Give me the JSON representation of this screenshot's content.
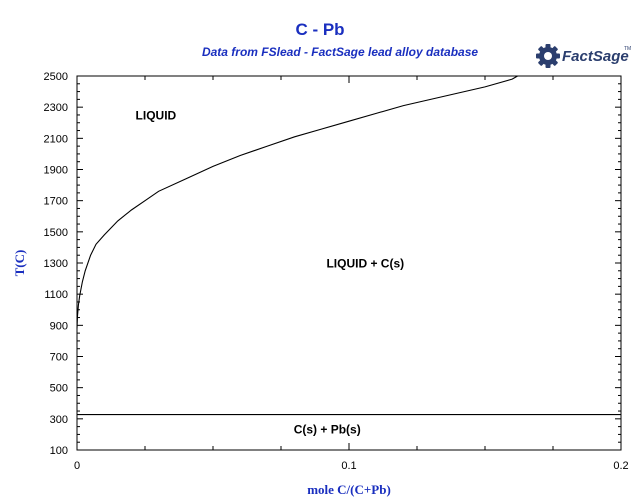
{
  "header": {
    "title": "C - Pb",
    "subtitle": "Data from FSlead - FactSage lead alloy database",
    "logo_text": "FactSage",
    "logo_tm": "TM"
  },
  "colors": {
    "title": "#1a2fbf",
    "axis_label": "#1a2fbf",
    "line": "#000000",
    "logo": "#2b3e6e"
  },
  "chart_data": {
    "type": "line",
    "xlabel": "mole C/(C+Pb)",
    "ylabel": "T(C)",
    "xlim": [
      0,
      0.2
    ],
    "ylim": [
      100,
      2500
    ],
    "x_ticks": [
      {
        "value": 0,
        "label": "0"
      },
      {
        "value": 0.1,
        "label": "0.1"
      },
      {
        "value": 0.2,
        "label": "0.2"
      }
    ],
    "y_ticks": [
      {
        "value": 100,
        "label": "100"
      },
      {
        "value": 300,
        "label": "300"
      },
      {
        "value": 500,
        "label": "500"
      },
      {
        "value": 700,
        "label": "700"
      },
      {
        "value": 900,
        "label": "900"
      },
      {
        "value": 1100,
        "label": "1100"
      },
      {
        "value": 1300,
        "label": "1300"
      },
      {
        "value": 1500,
        "label": "1500"
      },
      {
        "value": 1700,
        "label": "1700"
      },
      {
        "value": 1900,
        "label": "1900"
      },
      {
        "value": 2100,
        "label": "2100"
      },
      {
        "value": 2300,
        "label": "2300"
      },
      {
        "value": 2500,
        "label": "2500"
      }
    ],
    "grid": false,
    "series": [
      {
        "x": [
          0.0,
          0.0002,
          0.0005,
          0.001,
          0.002,
          0.003,
          0.005,
          0.007,
          0.01,
          0.015,
          0.02,
          0.025,
          0.03,
          0.04,
          0.05,
          0.06,
          0.07,
          0.08,
          0.09,
          0.1,
          0.11,
          0.12,
          0.13,
          0.14,
          0.15,
          0.16,
          0.162
        ],
        "y": [
          880,
          960,
          1030,
          1090,
          1180,
          1250,
          1350,
          1420,
          1480,
          1570,
          1640,
          1700,
          1760,
          1840,
          1920,
          1990,
          2050,
          2110,
          2160,
          2210,
          2260,
          2310,
          2350,
          2390,
          2430,
          2480,
          2500
        ]
      },
      {
        "x": [
          0,
          0.2
        ],
        "y": [
          327,
          327
        ]
      }
    ],
    "annotations": [
      {
        "text": "LIQUID",
        "x": 0.029,
        "y": 2220
      },
      {
        "text": "LIQUID + C(s)",
        "x": 0.106,
        "y": 1270
      },
      {
        "text": "C(s) + Pb(s)",
        "x": 0.092,
        "y": 205
      }
    ]
  }
}
